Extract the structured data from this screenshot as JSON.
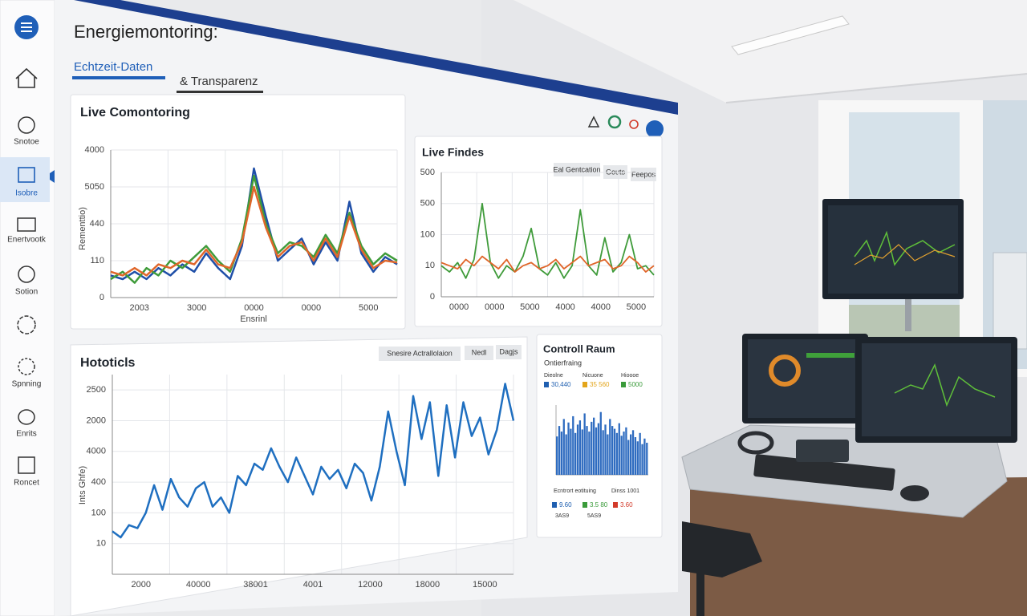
{
  "sidebar": {
    "items": [
      "Snotoe",
      "Isobre",
      "Enertvootk",
      "Sotion",
      "Spnning",
      "Enrits",
      "Roncet"
    ]
  },
  "header": {
    "title": "Energiemontoring:",
    "tabs": [
      "Echtzeit-Daten",
      "& Transparenz"
    ]
  },
  "live_monitoring": {
    "title": "Live Comontoring",
    "x_label": "Ensrinl",
    "y_label": "Rementtio)",
    "ylim": [
      0,
      4
    ],
    "yticks": [
      {
        "value": 0,
        "label": "0"
      },
      {
        "value": 1,
        "label": "110"
      },
      {
        "value": 2,
        "label": "440"
      },
      {
        "value": 3,
        "label": "5050"
      },
      {
        "value": 4,
        "label": "4000"
      }
    ],
    "xticks": [
      "2003",
      "3000",
      "0000",
      "0000",
      "5000"
    ],
    "series": [
      {
        "color": "#1f4fa8",
        "values": [
          0.6,
          0.5,
          0.7,
          0.5,
          0.8,
          0.6,
          0.9,
          0.7,
          1.2,
          0.8,
          0.5,
          1.4,
          3.5,
          2.2,
          1.0,
          1.3,
          1.6,
          0.9,
          1.5,
          1.0,
          2.6,
          1.2,
          0.7,
          1.1,
          0.9
        ]
      },
      {
        "color": "#3f9b3a",
        "values": [
          0.5,
          0.7,
          0.4,
          0.8,
          0.6,
          1.0,
          0.8,
          1.1,
          1.4,
          1.0,
          0.7,
          1.6,
          3.3,
          2.0,
          1.2,
          1.5,
          1.4,
          1.1,
          1.7,
          1.2,
          2.3,
          1.4,
          0.9,
          1.2,
          1.0
        ]
      },
      {
        "color": "#e0662a",
        "values": [
          0.7,
          0.6,
          0.8,
          0.6,
          0.9,
          0.8,
          1.0,
          0.9,
          1.3,
          0.9,
          0.8,
          1.5,
          3.0,
          1.9,
          1.1,
          1.4,
          1.5,
          1.0,
          1.6,
          1.1,
          2.2,
          1.3,
          0.8,
          1.0,
          0.95
        ]
      }
    ]
  },
  "live_findes": {
    "title": "Live Findes",
    "buttons": [
      "Eal Gentcation",
      "Gouts",
      "Feepos"
    ],
    "ylim": [
      0,
      4
    ],
    "yticks": [
      {
        "value": 0,
        "label": "0"
      },
      {
        "value": 1,
        "label": "10"
      },
      {
        "value": 2,
        "label": "100"
      },
      {
        "value": 3,
        "label": "500"
      },
      {
        "value": 4,
        "label": "500"
      }
    ],
    "xticks": [
      "0000",
      "0000",
      "5000",
      "4000",
      "4000",
      "5000"
    ],
    "series": [
      {
        "color": "#3f9b3a",
        "values": [
          1.0,
          0.8,
          1.1,
          0.6,
          1.2,
          3.0,
          1.1,
          0.6,
          1.0,
          0.8,
          1.3,
          2.2,
          0.9,
          0.7,
          1.1,
          0.6,
          1.0,
          2.8,
          1.0,
          0.7,
          1.9,
          0.8,
          1.1,
          2.0,
          0.9,
          1.0,
          0.7
        ]
      },
      {
        "color": "#e0662a",
        "values": [
          1.1,
          1.0,
          0.9,
          1.2,
          1.0,
          1.3,
          1.1,
          0.9,
          1.2,
          0.8,
          1.0,
          1.1,
          0.9,
          1.0,
          1.2,
          0.9,
          1.1,
          1.3,
          1.0,
          1.1,
          1.2,
          0.9,
          1.0,
          1.3,
          1.1,
          0.8,
          1.0
        ]
      }
    ]
  },
  "hototicls": {
    "title": "Hototicls",
    "y_label": "Ints Ghfe)",
    "buttons": [
      "Snesire Actrallolaion",
      "Nedl",
      "Dagjs"
    ],
    "ylim": [
      -1,
      5.5
    ],
    "yticks": [
      {
        "value": 0,
        "label": "10"
      },
      {
        "value": 1,
        "label": "100"
      },
      {
        "value": 2,
        "label": "400"
      },
      {
        "value": 3,
        "label": "4000"
      },
      {
        "value": 4,
        "label": "2000"
      },
      {
        "value": 5,
        "label": "2500"
      }
    ],
    "xticks": [
      "2000",
      "40000",
      "38001",
      "4001",
      "12000",
      "18000",
      "15000"
    ],
    "series": [
      {
        "color": "#1f6fc0",
        "values": [
          0.4,
          0.2,
          0.6,
          0.5,
          1.0,
          1.9,
          1.1,
          2.1,
          1.5,
          1.2,
          1.8,
          2.0,
          1.2,
          1.5,
          1.0,
          2.2,
          1.9,
          2.6,
          2.4,
          3.1,
          2.5,
          2.0,
          2.8,
          2.2,
          1.6,
          2.5,
          2.1,
          2.4,
          1.8,
          2.6,
          2.3,
          1.4,
          2.5,
          4.3,
          3.0,
          1.9,
          4.8,
          3.4,
          4.6,
          2.2,
          4.5,
          2.8,
          4.6,
          3.5,
          4.1,
          2.9,
          3.7,
          5.2,
          4.0
        ]
      }
    ]
  },
  "control_raum": {
    "title": "Controll Raum",
    "subtitle": "Ontierfraing",
    "stats": [
      {
        "label": "Dieolne",
        "value": "30,440",
        "color": "#1f5fb0"
      },
      {
        "label": "Nicuone",
        "value": "35 560",
        "color": "#e3a51a"
      },
      {
        "label": "Hioooe",
        "value": "5000",
        "color": "#3a9b3a"
      }
    ],
    "bars": {
      "color": "#2f6cc0",
      "ylim": [
        0,
        100
      ],
      "values": [
        55,
        70,
        62,
        80,
        58,
        75,
        66,
        84,
        60,
        72,
        78,
        65,
        88,
        70,
        62,
        76,
        82,
        68,
        74,
        90,
        64,
        72,
        58,
        80,
        70,
        66,
        60,
        74,
        56,
        62,
        68,
        50,
        58,
        64,
        54,
        48,
        60,
        44,
        52,
        46
      ]
    },
    "footer_labels": [
      "Ecntrort eotituing",
      "Dinss 1001"
    ],
    "footer_stats": [
      {
        "value": "9.60",
        "color": "#1f5fb0"
      },
      {
        "value": "3.5 80",
        "color": "#3a9b3a"
      },
      {
        "value": "3.60",
        "color": "#d23a2a"
      }
    ],
    "footer_notes": [
      "3AS9",
      "5AS9"
    ]
  }
}
